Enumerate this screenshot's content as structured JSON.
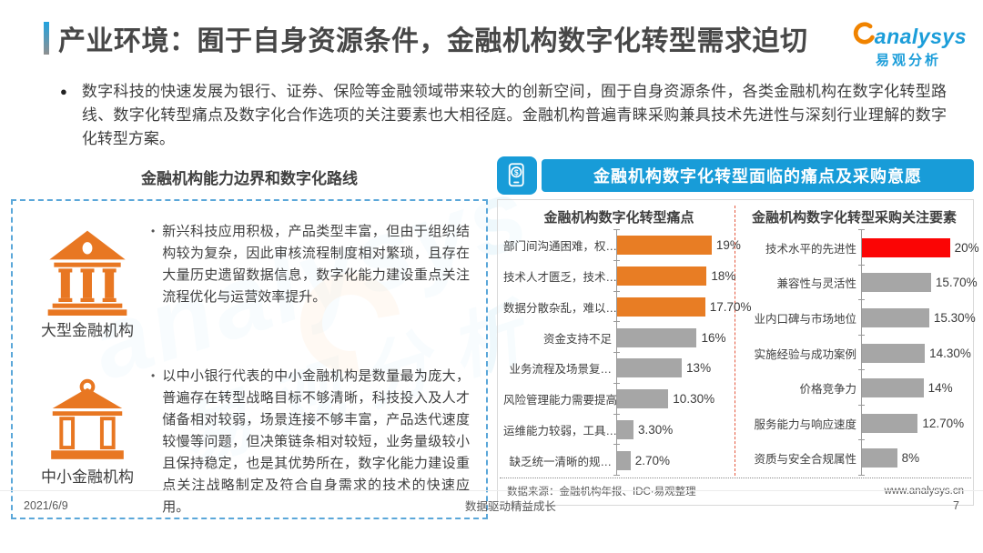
{
  "page": {
    "title": "产业环境：囿于自身资源条件，金融机构数字化转型需求迫切",
    "footer_date": "2021/6/9",
    "footer_center": "数据驱动精益成长",
    "footer_page": "7"
  },
  "logo": {
    "brand": "analysys",
    "brand_cn": "易观分析"
  },
  "intro": {
    "bullet": "●",
    "text": "数字科技的快速发展为银行、证券、保险等金融领域带来较大的创新空间，囿于自身资源条件，各类金融机构在数字化转型路线、数字化转型痛点及数字化合作选项的关注要素也大相径庭。金融机构普遍青睐采购兼具技术先进性与深刻行业理解的数字化转型方案。"
  },
  "left_panel": {
    "title": "金融机构能力边界和数字化路线",
    "blocks": [
      {
        "icon": "bank-solid-icon",
        "label": "大型金融机构",
        "bullet": "•",
        "text": "新兴科技应用积极，产品类型丰富，但由于组织结构较为复杂，因此审核流程制度相对繁琐，且存在大量历史遗留数据信息，数字化能力建设重点关注流程优化与运营效率提升。"
      },
      {
        "icon": "bank-outline-icon",
        "label": "中小金融机构",
        "bullet": "•",
        "text": "以中小银行代表的中小金融机构是数量最为庞大，普遍存在转型战略目标不够清晰，科技投入及人才储备相对较弱，场景连接不够丰富，产品迭代速度较慢等问题，但决策链条相对较短，业务量级较小且保持稳定，也是其优势所在，数字化能力建设重点关注战略制定及符合自身需求的技术的快速应用。"
      }
    ]
  },
  "right_panel": {
    "header": "金融机构数字化转型面临的痛点及采购意愿",
    "header_icon": "mobile-payment-icon",
    "source": "数据来源：金融机构年报、IDC·易观整理",
    "website": "www.analysys.cn"
  },
  "chart_data": [
    {
      "type": "bar",
      "orientation": "horizontal",
      "title": "金融机构数字化转型痛点",
      "categories": [
        "部门间沟通困难，权…",
        "技术人才匮乏，技术…",
        "数据分散杂乱，难以…",
        "资金支持不足",
        "业务流程及场景复…",
        "风险管理能力需要提高",
        "运维能力较弱，工具…",
        "缺乏统一清晰的规…"
      ],
      "values": [
        19,
        18,
        17.7,
        16,
        13,
        10.3,
        3.3,
        2.7
      ],
      "value_labels": [
        "19%",
        "18%",
        "17.70%",
        "16%",
        "13%",
        "10.30%",
        "3.30%",
        "2.70%"
      ],
      "bar_colors": [
        "bar_orange",
        "bar_orange",
        "bar_orange",
        "bar_gray",
        "bar_gray",
        "bar_gray",
        "bar_gray",
        "bar_gray"
      ],
      "xlim": [
        0,
        20
      ],
      "grid": false,
      "legend": false
    },
    {
      "type": "bar",
      "orientation": "horizontal",
      "title": "金融机构数字化转型采购关注要素",
      "categories": [
        "技术水平的先进性",
        "兼容性与灵活性",
        "业内口碑与市场地位",
        "实施经验与成功案例",
        "价格竞争力",
        "服务能力与响应速度",
        "资质与安全合规属性"
      ],
      "values": [
        20,
        15.7,
        15.3,
        14.3,
        14,
        12.7,
        8
      ],
      "value_labels": [
        "20%",
        "15.70%",
        "15.30%",
        "14.30%",
        "14%",
        "12.70%",
        "8%"
      ],
      "bar_colors": [
        "bar_red",
        "bar_gray",
        "bar_gray",
        "bar_gray",
        "bar_gray",
        "bar_gray",
        "bar_gray"
      ],
      "xlim": [
        0,
        20
      ],
      "grid": false,
      "legend": false
    }
  ],
  "colors": {
    "header_blue": "#189CD8",
    "bar_orange": "#E87D24",
    "bar_gray": "#A6A6A6",
    "bar_red": "#FB0505",
    "icon_orange": "#E87722",
    "divider_red": "#E4573D",
    "box_border_blue": "#5BA7D9"
  }
}
